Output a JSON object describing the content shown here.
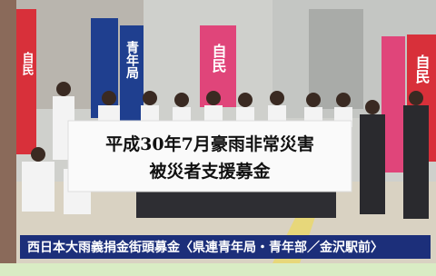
{
  "photo": {
    "banner": {
      "line1": "平成30年7月豪雨非常災害",
      "line2": "被災者支援募金"
    },
    "flags": [
      {
        "label": "自民"
      },
      {
        "label": "青年局"
      },
      {
        "label": "自民"
      },
      {
        "label": "自民"
      }
    ],
    "caption": "西日本大雨義捐金街頭募金〈県連青年局・青年部／金沢駅前〉"
  }
}
